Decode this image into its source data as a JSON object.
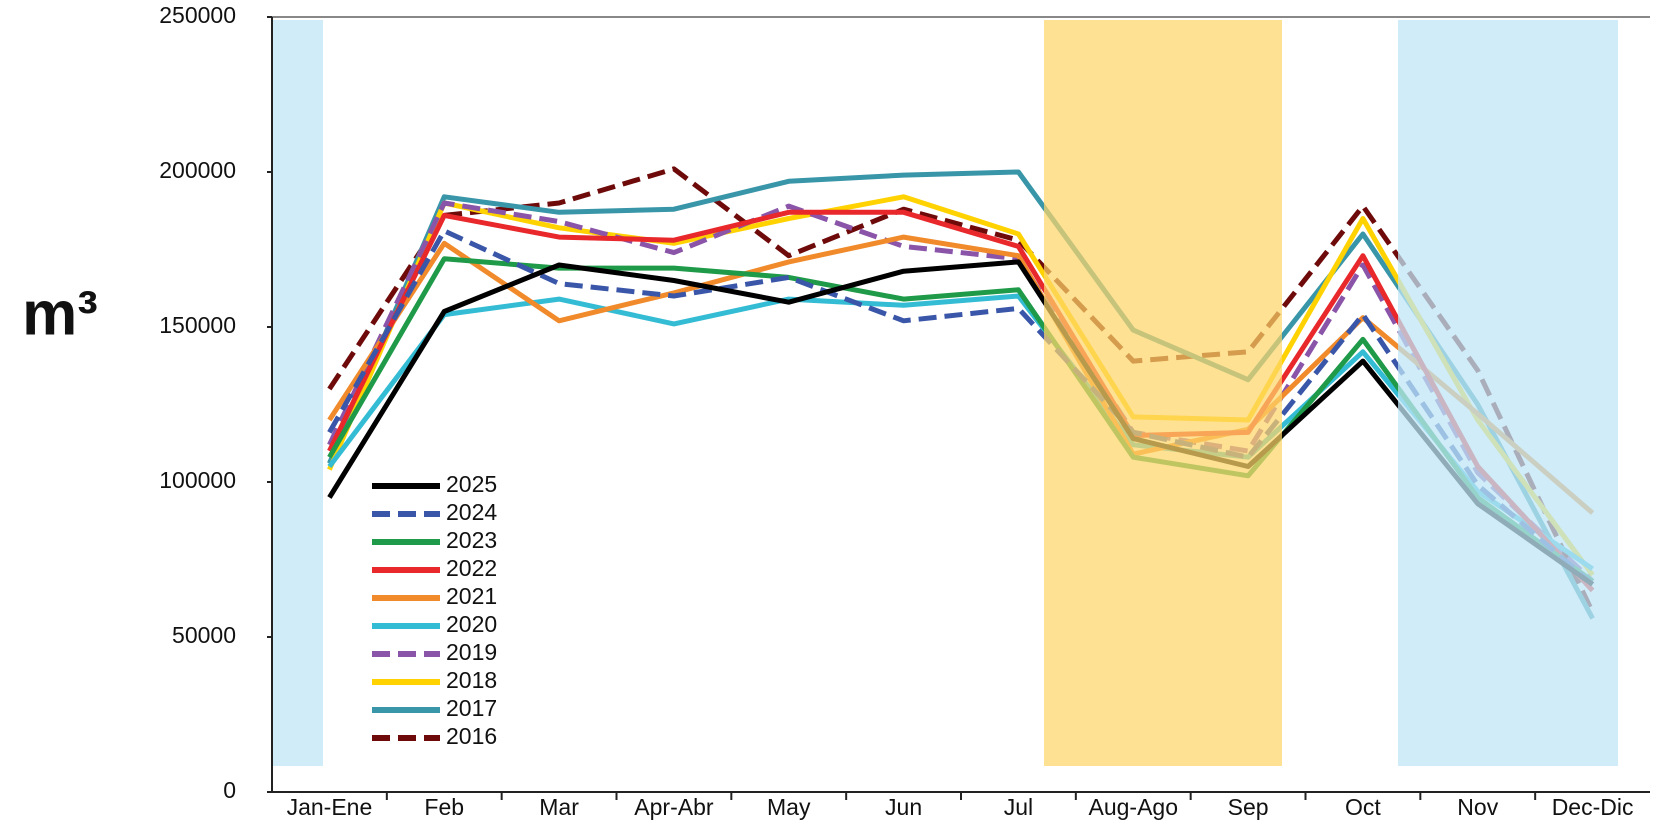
{
  "chart_data": {
    "type": "line",
    "ylabel": "m³",
    "categories": [
      "Jan-Ene",
      "Feb",
      "Mar",
      "Apr-Abr",
      "May",
      "Jun",
      "Jul",
      "Aug-Ago",
      "Sep",
      "Oct",
      "Nov",
      "Dec-Dic"
    ],
    "ylim": [
      0,
      250000
    ],
    "yticks": [
      0,
      50000,
      100000,
      150000,
      200000,
      250000
    ],
    "series": [
      {
        "name": "2025",
        "color": "#000000",
        "dash": false,
        "values": [
          95000,
          155000,
          170000,
          165000,
          158000,
          168000,
          171000,
          114000,
          105000,
          139000,
          93000,
          67000
        ]
      },
      {
        "name": "2024",
        "color": "#3a56a8",
        "dash": true,
        "values": [
          116000,
          181000,
          164000,
          160000,
          166000,
          152000,
          156000,
          116000,
          108000,
          154000,
          99000,
          67000
        ]
      },
      {
        "name": "2023",
        "color": "#1e9a48",
        "dash": false,
        "values": [
          108000,
          172000,
          169000,
          169000,
          166000,
          159000,
          162000,
          108000,
          102000,
          146000,
          95000,
          68000
        ]
      },
      {
        "name": "2022",
        "color": "#e8282b",
        "dash": false,
        "values": [
          110000,
          186000,
          179000,
          178000,
          187000,
          187000,
          176000,
          115000,
          116000,
          173000,
          105000,
          65000
        ]
      },
      {
        "name": "2021",
        "color": "#f08a2a",
        "dash": false,
        "values": [
          120000,
          177000,
          152000,
          161000,
          171000,
          179000,
          173000,
          109000,
          117000,
          153000,
          122000,
          90000
        ]
      },
      {
        "name": "2020",
        "color": "#34bcd4",
        "dash": false,
        "values": [
          105000,
          154000,
          159000,
          151000,
          159000,
          157000,
          160000,
          112000,
          108000,
          142000,
          97000,
          72000
        ]
      },
      {
        "name": "2019",
        "color": "#8a55a8",
        "dash": true,
        "values": [
          112000,
          190000,
          184000,
          174000,
          189000,
          176000,
          172000,
          116000,
          110000,
          170000,
          103000,
          68000
        ]
      },
      {
        "name": "2018",
        "color": "#ffd200",
        "dash": false,
        "values": [
          104000,
          190000,
          182000,
          177000,
          185000,
          192000,
          180000,
          121000,
          120000,
          185000,
          120000,
          70000
        ]
      },
      {
        "name": "2017",
        "color": "#3896a8",
        "dash": false,
        "values": [
          106000,
          192000,
          187000,
          188000,
          197000,
          199000,
          200000,
          149000,
          133000,
          180000,
          125000,
          56000
        ]
      },
      {
        "name": "2016",
        "color": "#6e0a0a",
        "dash": true,
        "values": [
          130000,
          186000,
          190000,
          201000,
          173000,
          188000,
          178000,
          139000,
          142000,
          189000,
          136000,
          58000
        ]
      }
    ]
  }
}
